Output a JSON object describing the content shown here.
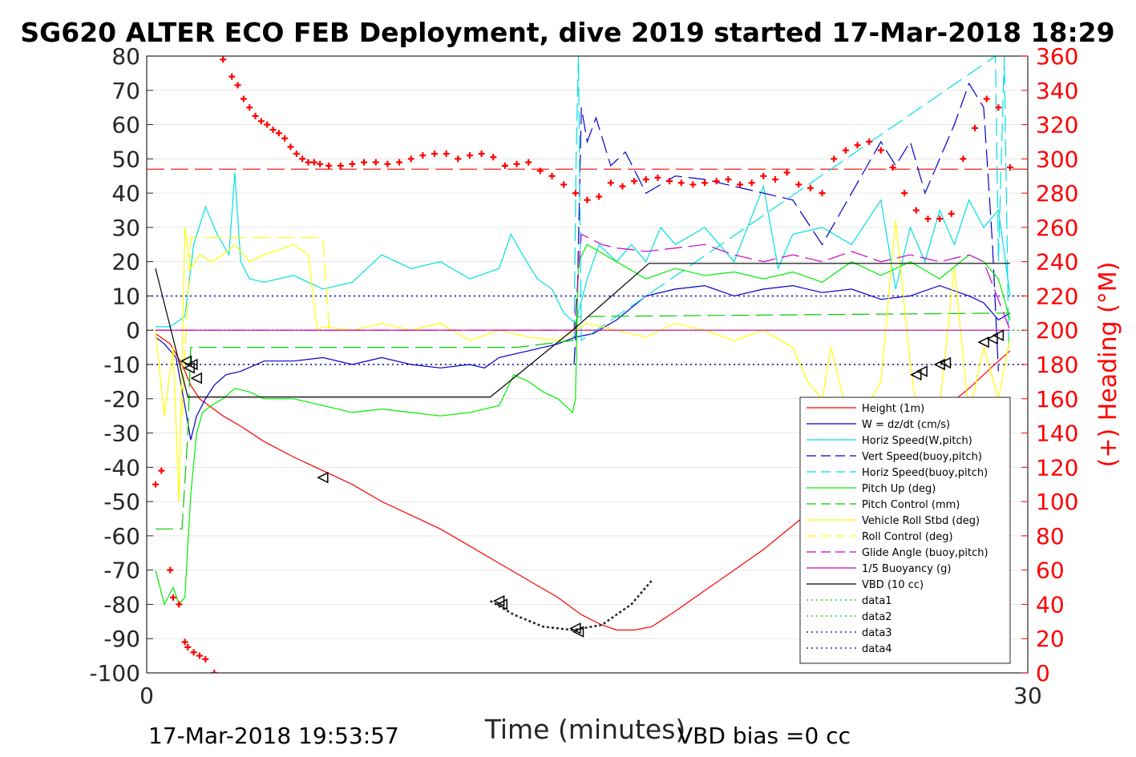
{
  "chart_data": {
    "type": "line",
    "title": "SG620 ALTER ECO FEB Deployment, dive 2019 started 17-Mar-2018 18:29",
    "xlabel": "Time (minutes)",
    "ylabel": "",
    "ylabel_right": "(+) Heading (°M)",
    "xlim": [
      0,
      30
    ],
    "ylim": [
      -100,
      80
    ],
    "ylim_right": [
      0,
      360
    ],
    "xticks": [
      "0",
      "30"
    ],
    "yticks": [
      "80",
      "70",
      "60",
      "50",
      "40",
      "30",
      "20",
      "10",
      "0",
      "-10",
      "-20",
      "-30",
      "-40",
      "-50",
      "-60",
      "-70",
      "-80",
      "-90",
      "-100"
    ],
    "yticks_right": [
      "360",
      "340",
      "320",
      "300",
      "280",
      "260",
      "240",
      "220",
      "200",
      "180",
      "160",
      "140",
      "120",
      "100",
      "80",
      "60",
      "40",
      "20",
      "0"
    ],
    "footer_left": "17-Mar-2018 19:53:57",
    "footer_right": "VBD bias =0 cc",
    "grid": true,
    "legend_position": "lower-right",
    "reference_lines": [
      {
        "name": "data1",
        "y": 0,
        "color": "#00cc00",
        "style": "dotted"
      },
      {
        "name": "data3",
        "y": 10,
        "color": "#0000aa",
        "style": "dotted"
      },
      {
        "name": "data4",
        "y": -10,
        "color": "#0000aa",
        "style": "dotted"
      }
    ],
    "series": [
      {
        "name": "Height (1m)",
        "color": "#ff0000",
        "style": "solid",
        "x": [
          0.3,
          0.8,
          1.2,
          1.5,
          1.8,
          2.2,
          2.6,
          3.2,
          4,
          5,
          6,
          7,
          8,
          9,
          10,
          11,
          12,
          13,
          14,
          14.8,
          15.5,
          16,
          16.6,
          17.2,
          18,
          19,
          20,
          21,
          22,
          23,
          24,
          25,
          26,
          27,
          28,
          28.5,
          29,
          29.4
        ],
        "y": [
          -1,
          -4,
          -10,
          -16,
          -20,
          -22.5,
          -25,
          -28,
          -32.5,
          -37,
          -41,
          -45,
          -50,
          -54,
          -58,
          -63,
          -68,
          -73,
          -78,
          -83,
          -86,
          -87.5,
          -87.5,
          -86.5,
          -82,
          -76,
          -70,
          -64,
          -57,
          -50,
          -43,
          -37,
          -30,
          -24,
          -17,
          -13,
          -9,
          -6
        ]
      },
      {
        "name": "W = dz/dt (cm/s)",
        "color": "#0000cc",
        "style": "solid",
        "x": [
          0.3,
          0.6,
          1.0,
          1.3,
          1.5,
          1.7,
          2.0,
          2.3,
          2.7,
          3.2,
          4,
          5,
          6,
          7,
          8,
          9,
          10,
          11,
          11.5,
          12,
          13,
          14,
          14.6,
          15.2,
          16,
          17,
          18,
          19,
          20,
          21,
          22,
          23,
          24,
          25,
          26,
          27,
          28,
          28.5,
          29,
          29.4
        ],
        "y": [
          -2,
          -4,
          -8,
          -22,
          -32,
          -25,
          -20,
          -16,
          -13,
          -12,
          -9,
          -9,
          -8,
          -10,
          -8,
          -10,
          -11,
          -10,
          -11,
          -8,
          -6,
          -4,
          -2,
          -1,
          3,
          10,
          12,
          13,
          10,
          12,
          13,
          11,
          12,
          9,
          10,
          13,
          10,
          8,
          3,
          5
        ]
      },
      {
        "name": "Horiz Speed(W,pitch)",
        "color": "#00e0e0",
        "style": "solid",
        "x": [
          0.3,
          0.8,
          1.3,
          1.6,
          2.0,
          2.4,
          2.8,
          3.0,
          3.2,
          3.5,
          4,
          5,
          6,
          7,
          8,
          9,
          10,
          11,
          12,
          12.4,
          12.8,
          13.3,
          13.8,
          14.2,
          14.6,
          15,
          15.4,
          16,
          16.5,
          17,
          17.5,
          18,
          19,
          20,
          21,
          21.5,
          22,
          23,
          24,
          25,
          25.5,
          26,
          26.5,
          27,
          27.5,
          28,
          28.5,
          29,
          29.4
        ],
        "y": [
          1,
          1,
          4,
          25,
          36,
          28,
          22,
          46,
          20,
          15,
          14,
          16,
          12,
          14,
          22,
          18,
          20,
          15,
          18,
          28,
          22,
          15,
          12,
          5,
          2,
          15,
          25,
          20,
          25,
          20,
          30,
          25,
          30,
          20,
          42,
          18,
          28,
          30,
          25,
          38,
          12,
          30,
          20,
          35,
          25,
          38,
          30,
          35,
          10
        ]
      },
      {
        "name": "Vert Speed(buoy,pitch)",
        "color": "#0000cc",
        "style": "dashed",
        "x": [
          14.55,
          14.65,
          14.8,
          15.0,
          15.3,
          15.8,
          16.3,
          17,
          18,
          19,
          20,
          21,
          22,
          23,
          24,
          25,
          25.5,
          26,
          26.5,
          27,
          27.5,
          28,
          28.5,
          28.8,
          29
        ],
        "y": [
          -10,
          5,
          65,
          55,
          62,
          48,
          52,
          40,
          45,
          44,
          42,
          40,
          38,
          25,
          40,
          55,
          48,
          55,
          40,
          50,
          60,
          72,
          65,
          25,
          -12
        ]
      },
      {
        "name": "Horiz Speed(buoy,pitch)",
        "color": "#00e0e0",
        "style": "dashed",
        "x": [
          14.55,
          14.62,
          14.7,
          14.8,
          28.9,
          29.0,
          29.2,
          29.35
        ],
        "y": [
          -2,
          50,
          80,
          -3,
          80,
          20,
          80,
          -5
        ]
      },
      {
        "name": "Pitch Up (deg)",
        "color": "#00ee00",
        "style": "solid",
        "x": [
          0.3,
          0.6,
          0.9,
          1.1,
          1.3,
          1.5,
          1.7,
          1.9,
          2.2,
          2.6,
          3.0,
          3.5,
          4,
          5,
          6,
          7,
          8,
          9,
          10,
          11,
          12,
          12.5,
          13,
          13.5,
          14,
          14.5,
          14.6,
          14.7,
          15,
          16,
          17,
          18,
          19,
          20,
          21,
          22,
          23,
          24,
          25,
          26,
          27,
          28,
          28.5,
          29,
          29.4
        ],
        "y": [
          -70,
          -80,
          -75,
          -80,
          -78,
          -48,
          -30,
          -24,
          -22,
          -20,
          -17,
          -18,
          -20,
          -20,
          -22,
          -24,
          -23,
          -24,
          -25,
          -24,
          -22,
          -13,
          -15,
          -18,
          -20,
          -24,
          -20,
          20,
          25,
          20,
          15,
          18,
          16,
          17,
          15,
          17,
          14,
          20,
          16,
          20,
          15,
          22,
          20,
          15,
          3
        ]
      },
      {
        "name": "Pitch Control (mm)",
        "color": "#00cc00",
        "style": "dashed",
        "x": [
          0.3,
          1.0,
          1.2,
          1.4,
          1.5,
          1.7,
          12.6,
          14.5,
          14.65,
          15,
          29.4
        ],
        "y": [
          -58,
          -58,
          -58,
          -30,
          -5,
          -5,
          -5,
          -3,
          4,
          4,
          5
        ]
      },
      {
        "name": "Vehicle Roll Stbd (deg)",
        "color": "#ffff00",
        "style": "solid",
        "x": [
          0.3,
          0.6,
          0.9,
          1.1,
          1.3,
          1.5,
          1.8,
          2.2,
          2.6,
          3.0,
          3.5,
          4,
          5,
          5.5,
          5.8,
          6,
          7,
          8,
          9,
          10,
          11,
          12,
          13,
          14,
          15,
          16,
          17,
          18,
          19,
          20,
          21,
          22,
          22.5,
          23,
          23.3,
          24,
          25,
          25.5,
          26,
          26.5,
          27,
          27.5,
          28,
          28.5,
          29,
          29.4
        ],
        "y": [
          0,
          -25,
          -5,
          -50,
          30,
          18,
          22,
          20,
          22,
          25,
          20,
          22,
          25,
          22,
          0,
          1,
          0,
          2,
          0,
          2,
          -3,
          0,
          -2,
          -3,
          2,
          0,
          -2,
          2,
          0,
          -3,
          0,
          -5,
          -15,
          -20,
          -5,
          -30,
          -15,
          32,
          -10,
          -40,
          -22,
          18,
          -25,
          -5,
          -20,
          -2
        ]
      },
      {
        "name": "Roll Control (deg)",
        "color": "#ffff00",
        "style": "dashed",
        "x": [
          1.2,
          1.5,
          1.8,
          6.0,
          6.2,
          6.5,
          29.4
        ],
        "y": [
          -25,
          27,
          27,
          27,
          1,
          0,
          0
        ]
      },
      {
        "name": "Glide Angle (buoy,pitch)",
        "color": "#cc00cc",
        "style": "dashed",
        "x": [
          0.3,
          14.55,
          14.8,
          15.5,
          16,
          17,
          18,
          19,
          20,
          21,
          22,
          23,
          24,
          25,
          26,
          27,
          28,
          28.5,
          29.4
        ],
        "y": [
          0,
          0,
          28,
          25,
          24,
          23,
          24,
          25,
          22,
          20,
          22,
          20,
          23,
          20,
          22,
          20,
          22,
          20,
          0
        ]
      },
      {
        "name": "1/5 Buoyancy (g)",
        "color": "#cc00cc",
        "style": "solid",
        "x": [
          0.3,
          14.6,
          29.4
        ],
        "y": [
          0,
          0,
          0
        ]
      },
      {
        "name": "VBD (10 cc)",
        "color": "#000000",
        "style": "solid",
        "x": [
          0.3,
          1.4,
          11.7,
          14.5,
          17.1,
          29.4
        ],
        "y": [
          18,
          -19.5,
          -19.5,
          0,
          19.5,
          19.5
        ]
      },
      {
        "name": "data1",
        "color": "#00cc00",
        "style": "dotted",
        "x": [],
        "y": []
      },
      {
        "name": "data2",
        "color": "#00cc00",
        "style": "dotted",
        "x": [
          11.7,
          12.5,
          13.5,
          14.5,
          15.5,
          16.5,
          17.2
        ],
        "y": [
          -79,
          -83,
          -86.5,
          -87.5,
          -86,
          -80,
          -73
        ]
      },
      {
        "name": "data3",
        "color": "#0000aa",
        "style": "dotted",
        "x": [],
        "y": []
      },
      {
        "name": "data4",
        "color": "#0000aa",
        "style": "dotted",
        "x": [],
        "y": []
      }
    ],
    "heading_series": {
      "name": "Heading",
      "marker": "+",
      "color": "#ff0000",
      "axis": "right",
      "x": [
        0.3,
        0.5,
        0.8,
        0.9,
        1.1,
        1.3,
        1.4,
        1.6,
        1.8,
        2.0,
        2.3,
        2.6,
        2.9,
        3.1,
        3.3,
        3.5,
        3.7,
        3.9,
        4.1,
        4.3,
        4.5,
        4.7,
        4.9,
        5.1,
        5.3,
        5.5,
        5.7,
        5.9,
        6.2,
        6.6,
        7,
        7.4,
        7.8,
        8.2,
        8.6,
        9,
        9.4,
        9.8,
        10.2,
        10.6,
        11,
        11.4,
        11.8,
        12.2,
        12.6,
        13,
        13.4,
        13.8,
        14.2,
        14.6,
        15,
        15.4,
        15.8,
        16.2,
        16.6,
        17,
        17.4,
        17.8,
        18.2,
        18.6,
        19,
        19.4,
        19.8,
        20.2,
        20.6,
        21,
        21.4,
        21.8,
        22.2,
        22.6,
        23,
        23.4,
        23.8,
        24.2,
        24.6,
        25,
        25.4,
        25.8,
        26.2,
        26.6,
        27,
        27.4,
        27.8,
        28.2,
        28.6,
        29,
        29.4
      ],
      "y": [
        110,
        118,
        60,
        44,
        40,
        18,
        15,
        12,
        10,
        8,
        0,
        358,
        348,
        343,
        335,
        330,
        325,
        322,
        320,
        317,
        315,
        312,
        307,
        303,
        300,
        298,
        298,
        297,
        296,
        296,
        297,
        298,
        298,
        297,
        298,
        300,
        302,
        303,
        303,
        300,
        302,
        303,
        301,
        296,
        297,
        298,
        293,
        290,
        285,
        280,
        276,
        278,
        286,
        284,
        287,
        288,
        289,
        287,
        286,
        285,
        286,
        287,
        288,
        285,
        286,
        290,
        288,
        292,
        285,
        283,
        280,
        300,
        305,
        308,
        310,
        305,
        295,
        280,
        270,
        265,
        265,
        268,
        300,
        318,
        335,
        330,
        295
      ]
    }
  }
}
